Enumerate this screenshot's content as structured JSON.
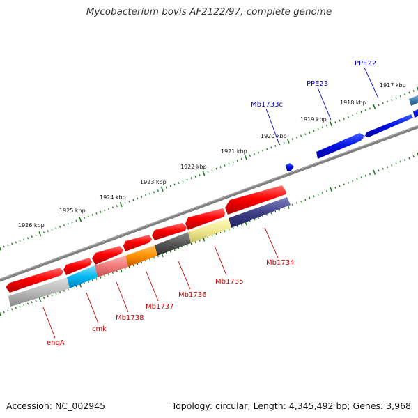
{
  "title": "Mycobacterium bovis AF2122/97, complete genome",
  "footer": {
    "accession": "Accession: NC_002945",
    "summary": "Topology: circular; Length: 4,345,492 bp; Genes: 3,968"
  },
  "colors": {
    "tick": "#1a7a1a",
    "backbone": "#808080",
    "label_blue": "#0000cc",
    "label_red": "#cc0000",
    "gene_red": "#ff0000",
    "gene_blue": "#0000ee"
  },
  "scale_labels": [
    {
      "label": "1926 kbp"
    },
    {
      "label": "1925 kbp"
    },
    {
      "label": "1924 kbp"
    },
    {
      "label": "1923 kbp"
    },
    {
      "label": "1922 kbp"
    },
    {
      "label": "1921 kbp"
    },
    {
      "label": "1920 kbp"
    },
    {
      "label": "1919 kbp"
    },
    {
      "label": "1918 kbp"
    },
    {
      "label": "1917 kbp"
    }
  ],
  "gene_labels": [
    {
      "label": "PPE22",
      "color": "blue"
    },
    {
      "label": "PPE23",
      "color": "blue"
    },
    {
      "label": "Mb1733c",
      "color": "blue"
    },
    {
      "label": "Mb1734",
      "color": "red"
    },
    {
      "label": "Mb1735",
      "color": "red"
    },
    {
      "label": "Mb1736",
      "color": "red"
    },
    {
      "label": "Mb1737",
      "color": "red"
    },
    {
      "label": "Mb1738",
      "color": "red"
    },
    {
      "label": "cmk",
      "color": "red"
    },
    {
      "label": "engA",
      "color": "red"
    }
  ]
}
